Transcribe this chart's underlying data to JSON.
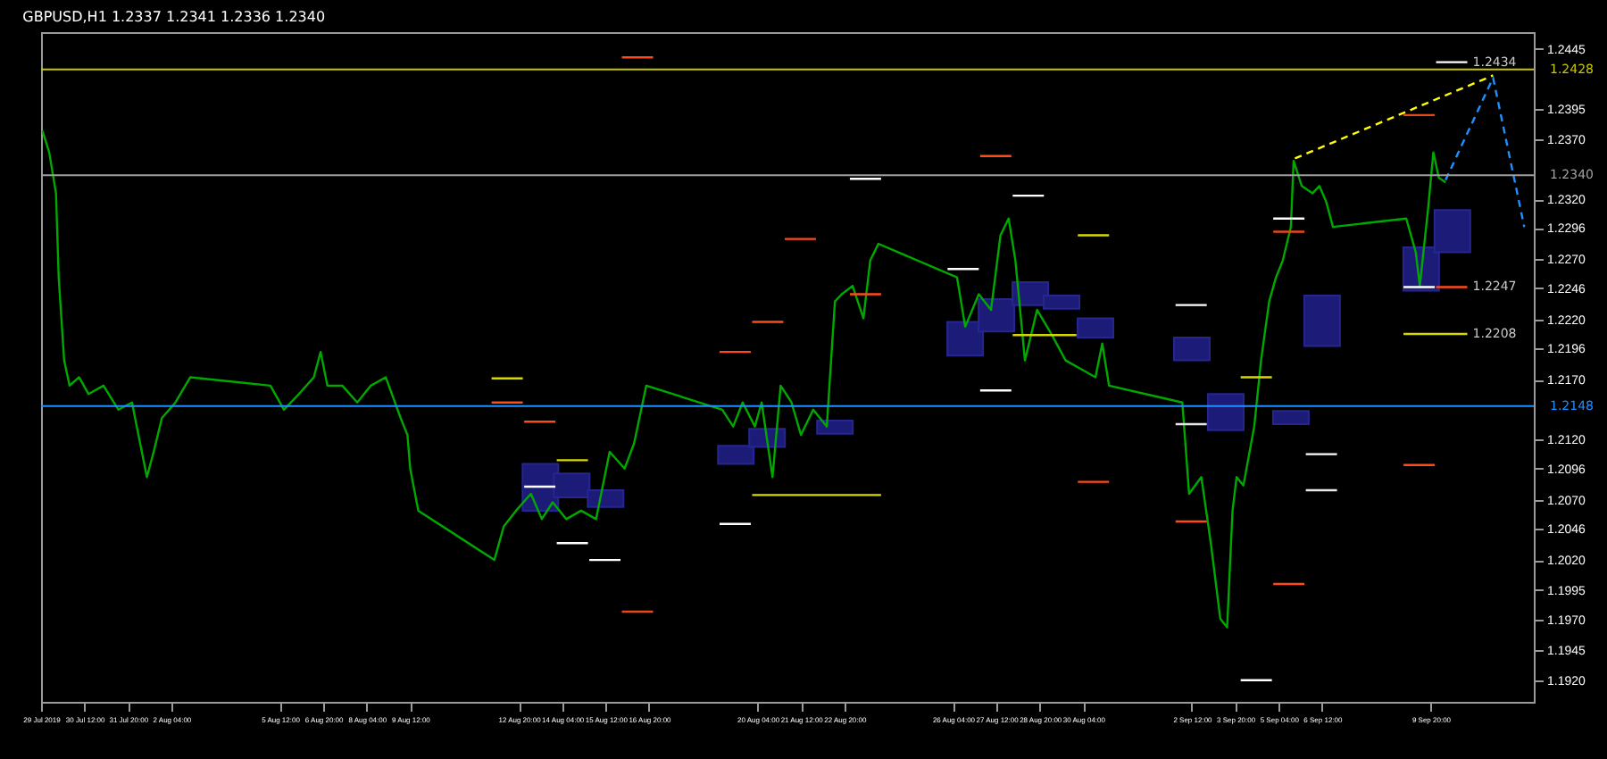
{
  "chart_data": {
    "type": "line",
    "title": "GBPUSD,H1  1.2337 1.2341 1.2336 1.2340",
    "xlim": [
      "2019-07-29T04:00",
      "2019-09-13T00:00"
    ],
    "ylim": [
      1.1902,
      1.2459
    ],
    "xticks": [
      {
        "value": "2019-07-29T04:00",
        "label": "29 Jul 2019"
      },
      {
        "value": "2019-07-30T12:00",
        "label": "30 Jul 12:00"
      },
      {
        "value": "2019-07-31T20:00",
        "label": "31 Jul 20:00"
      },
      {
        "value": "2019-08-02T04:00",
        "label": "2 Aug 04:00"
      },
      {
        "value": "2019-08-05T12:00",
        "label": "5 Aug 12:00"
      },
      {
        "value": "2019-08-06T20:00",
        "label": "6 Aug 20:00"
      },
      {
        "value": "2019-08-08T04:00",
        "label": "8 Aug 04:00"
      },
      {
        "value": "2019-08-09T12:00",
        "label": "9 Aug 12:00"
      },
      {
        "value": "2019-08-12T20:00",
        "label": "12 Aug 20:00"
      },
      {
        "value": "2019-08-14T04:00",
        "label": "14 Aug 04:00"
      },
      {
        "value": "2019-08-15T12:00",
        "label": "15 Aug 12:00"
      },
      {
        "value": "2019-08-16T20:00",
        "label": "16 Aug 20:00"
      },
      {
        "value": "2019-08-20T04:00",
        "label": "20 Aug 04:00"
      },
      {
        "value": "2019-08-21T12:00",
        "label": "21 Aug 12:00"
      },
      {
        "value": "2019-08-22T20:00",
        "label": "22 Aug 20:00"
      },
      {
        "value": "2019-08-26T04:00",
        "label": "26 Aug 04:00"
      },
      {
        "value": "2019-08-27T12:00",
        "label": "27 Aug 12:00"
      },
      {
        "value": "2019-08-28T20:00",
        "label": "28 Aug 20:00"
      },
      {
        "value": "2019-08-30T04:00",
        "label": "30 Aug 04:00"
      },
      {
        "value": "2019-09-02T12:00",
        "label": "2 Sep 12:00"
      },
      {
        "value": "2019-09-03T20:00",
        "label": "3 Sep 20:00"
      },
      {
        "value": "2019-09-05T04:00",
        "label": "5 Sep 04:00"
      },
      {
        "value": "2019-09-06T12:00",
        "label": "6 Sep 12:00"
      },
      {
        "value": "2019-09-09T20:00",
        "label": "9 Sep 20:00"
      }
    ],
    "yticks": [
      1.2445,
      1.2395,
      {
        "value": 1.237,
        "label": "1.2370"
      },
      {
        "value": 1.232,
        "label": "1.2320"
      },
      1.2296,
      {
        "value": 1.227,
        "label": "1.2270"
      },
      1.2246,
      {
        "value": 1.222,
        "label": "1.2220"
      },
      1.2196,
      {
        "value": 1.217,
        "label": "1.2170"
      },
      {
        "value": 1.212,
        "label": "1.2120"
      },
      1.2096,
      {
        "value": 1.207,
        "label": "1.2070"
      },
      1.2046,
      {
        "value": 1.202,
        "label": "1.2020"
      },
      1.1995,
      {
        "value": 1.197,
        "label": "1.1970"
      },
      1.1945,
      {
        "value": 1.192,
        "label": "1.1920"
      }
    ],
    "series": [
      {
        "type": "bar",
        "color": "#1c1c78",
        "x": [
          "2019-08-13T12:00",
          "2019-08-14T11:00",
          "2019-08-15T12:00",
          "2019-08-19T12:00",
          "2019-08-20T11:00",
          "2019-08-22T13:00",
          "2019-08-26T13:00",
          "2019-08-27T12:00",
          "2019-08-28T13:00",
          "2019-08-29T12:00",
          "2019-08-30T13:00",
          "2019-09-02T12:00",
          "2019-09-03T13:00",
          "2019-09-05T13:00",
          "2019-09-06T12:00",
          "2019-09-09T13:00",
          "2019-09-10T12:00"
        ],
        "base": [
          1.2061,
          1.2072,
          1.2064,
          1.21,
          1.2114,
          1.2125,
          1.219,
          1.221,
          1.2232,
          1.2229,
          1.2205,
          1.2186,
          1.2128,
          1.2133,
          1.2198,
          1.2244,
          1.2276
        ],
        "values": [
          0.0039,
          0.002,
          0.0014,
          0.0015,
          0.0015,
          0.0011,
          0.0028,
          0.0027,
          0.0019,
          0.0011,
          0.0016,
          0.0019,
          0.003,
          0.0011,
          0.0042,
          0.0036,
          0.0035
        ]
      },
      {
        "color": "#00a800",
        "x": [
          "2019-07-29T05:00",
          "2019-07-29T10:00",
          "2019-07-29T15:00",
          "2019-07-29T17:00",
          "2019-07-29T21:00",
          "2019-07-30T01:00",
          "2019-07-30T08:00",
          "2019-07-30T15:00",
          "2019-07-31T02:00",
          "2019-07-31T13:00",
          "2019-07-31T23:00",
          "2019-08-01T05:00",
          "2019-08-01T10:00",
          "2019-08-01T15:00",
          "2019-08-01T21:00",
          "2019-08-02T07:00",
          "2019-08-02T18:00",
          "2019-08-05T05:00",
          "2019-08-05T15:00",
          "2019-08-06T02:00",
          "2019-08-06T13:00",
          "2019-08-06T18:00",
          "2019-08-06T23:00",
          "2019-08-07T10:00",
          "2019-08-07T21:00",
          "2019-08-08T07:00",
          "2019-08-08T18:00",
          "2019-08-09T05:00",
          "2019-08-09T10:00",
          "2019-08-09T12:00",
          "2019-08-09T18:00",
          "2019-08-12T02:00",
          "2019-08-12T09:00",
          "2019-08-12T18:00",
          "2019-08-13T05:00",
          "2019-08-13T13:00",
          "2019-08-13T21:00",
          "2019-08-14T07:00",
          "2019-08-14T18:00",
          "2019-08-15T05:00",
          "2019-08-15T15:00",
          "2019-08-16T02:00",
          "2019-08-16T09:00",
          "2019-08-16T18:00",
          "2019-08-19T02:00",
          "2019-08-19T10:00",
          "2019-08-19T17:00",
          "2019-08-20T02:00",
          "2019-08-20T07:00",
          "2019-08-20T15:00",
          "2019-08-20T21:00",
          "2019-08-21T05:00",
          "2019-08-21T12:00",
          "2019-08-21T21:00",
          "2019-08-22T07:00",
          "2019-08-22T13:00",
          "2019-08-22T18:00",
          "2019-08-23T02:00",
          "2019-08-23T10:00",
          "2019-08-23T15:00",
          "2019-08-23T21:00",
          "2019-08-26T07:00",
          "2019-08-26T13:00",
          "2019-08-26T23:00",
          "2019-08-27T08:00",
          "2019-08-27T15:00",
          "2019-08-27T21:00",
          "2019-08-28T02:00",
          "2019-08-28T09:00",
          "2019-08-28T18:00",
          "2019-08-29T05:00",
          "2019-08-29T15:00",
          "2019-08-30T02:00",
          "2019-08-30T13:00",
          "2019-08-30T18:00",
          "2019-08-30T23:00",
          "2019-09-02T05:00",
          "2019-09-02T10:00",
          "2019-09-02T19:00",
          "2019-09-03T02:00",
          "2019-09-03T09:00",
          "2019-09-03T14:00",
          "2019-09-03T18:00",
          "2019-09-03T21:00",
          "2019-09-04T02:00",
          "2019-09-04T10:00",
          "2019-09-04T15:00",
          "2019-09-04T21:00",
          "2019-09-05T02:00",
          "2019-09-05T07:00",
          "2019-09-05T13:00",
          "2019-09-05T15:00",
          "2019-09-05T21:00",
          "2019-09-06T05:00",
          "2019-09-06T10:00",
          "2019-09-06T15:00",
          "2019-09-06T20:00",
          "2019-09-09T02:00",
          "2019-09-09T09:00",
          "2019-09-09T12:00",
          "2019-09-09T18:00",
          "2019-09-09T22:00",
          "2019-09-10T02:00",
          "2019-09-10T07:00"
        ],
        "values": [
          1.2377,
          1.2359,
          1.2325,
          1.2255,
          1.2186,
          1.2165,
          1.2172,
          1.2158,
          1.2165,
          1.2145,
          1.2151,
          1.2117,
          1.2089,
          1.211,
          1.2138,
          1.2151,
          1.2172,
          1.2165,
          1.2145,
          1.2158,
          1.2172,
          1.2193,
          1.2165,
          1.2165,
          1.2151,
          1.2165,
          1.2172,
          1.2138,
          1.2124,
          1.2096,
          1.2061,
          1.202,
          1.2048,
          1.2061,
          1.2075,
          1.2054,
          1.2068,
          1.2054,
          1.2061,
          1.2054,
          1.211,
          1.2096,
          1.2117,
          1.2165,
          1.2145,
          1.2131,
          1.2151,
          1.2131,
          1.2151,
          1.2089,
          1.2165,
          1.2151,
          1.2124,
          1.2145,
          1.2131,
          1.2235,
          1.2241,
          1.2248,
          1.2221,
          1.2269,
          1.2283,
          1.2255,
          1.2214,
          1.2241,
          1.2228,
          1.229,
          1.2304,
          1.2269,
          1.2186,
          1.2228,
          1.2207,
          1.2186,
          1.2179,
          1.2172,
          1.22,
          1.2165,
          1.2151,
          1.2075,
          1.2089,
          1.2034,
          1.1971,
          1.1964,
          1.2061,
          1.2089,
          1.2082,
          1.2131,
          1.2186,
          1.2235,
          1.2255,
          1.2269,
          1.2297,
          1.2352,
          1.2331,
          1.2325,
          1.2331,
          1.2318,
          1.2297,
          1.2304,
          1.2276,
          1.2248,
          1.2311,
          1.2359,
          1.2338,
          1.2334
        ]
      },
      {
        "color": "#ff4a1a",
        "x": [
          "2019-08-16T00:00",
          "2019-08-16T23:00",
          null,
          "2019-08-27T00:00",
          "2019-08-27T23:00",
          null,
          "2019-08-21T00:00",
          "2019-08-21T23:00",
          null,
          "2019-08-20T00:00",
          "2019-08-20T23:00",
          null,
          "2019-08-19T00:00",
          "2019-08-19T23:00",
          null,
          "2019-08-12T00:00",
          "2019-08-12T23:00",
          null,
          "2019-08-13T00:00",
          "2019-08-13T23:00",
          null,
          "2019-08-23T00:00",
          "2019-08-23T23:00",
          null,
          "2019-08-30T00:00",
          "2019-08-30T23:00",
          null,
          "2019-09-02T00:00",
          "2019-09-02T23:00",
          null,
          "2019-09-05T00:00",
          "2019-09-05T23:00",
          null,
          "2019-09-09T00:00",
          "2019-09-09T23:00",
          null,
          "2019-09-10T00:00",
          "2019-09-10T23:00"
        ],
        "values": [
          1.2438,
          1.2438,
          null,
          1.2356,
          1.2356,
          null,
          1.2287,
          1.2287,
          null,
          1.2218,
          1.2218,
          null,
          1.2193,
          1.2193,
          null,
          1.2151,
          1.2151,
          null,
          1.2135,
          1.2135,
          null,
          1.2241,
          1.2241,
          null,
          1.2085,
          1.2085,
          null,
          1.2052,
          1.2052,
          null,
          1.2,
          1.2,
          null,
          1.2099,
          1.2099,
          null,
          1.2247,
          1.2247
        ]
      },
      {
        "color": "#e84818",
        "x": [
          "2019-09-09T00:00",
          "2019-09-09T23:00",
          null,
          "2019-08-16T00:00",
          "2019-08-16T23:00",
          null,
          "2019-09-05T00:00",
          "2019-09-05T23:00"
        ],
        "values": [
          1.239,
          1.239,
          null,
          1.1977,
          1.1977,
          null,
          1.2293,
          1.2293
        ]
      },
      {
        "color": "#ffffff",
        "x": [
          "2019-08-23T00:00",
          "2019-08-23T23:00",
          null,
          "2019-08-28T00:00",
          "2019-08-28T23:00",
          null,
          "2019-08-26T00:00",
          "2019-08-26T23:00",
          null,
          "2019-09-02T00:00",
          "2019-09-02T23:00",
          null,
          "2019-08-13T00:00",
          "2019-08-13T23:00",
          null,
          "2019-08-14T00:00",
          "2019-08-14T23:00",
          null,
          "2019-08-15T00:00",
          "2019-08-15T23:00",
          null,
          "2019-08-19T00:00",
          "2019-08-19T23:00",
          null,
          "2019-09-06T00:00",
          "2019-09-06T23:00",
          null,
          "2019-09-04T00:00",
          "2019-09-04T23:00",
          null,
          "2019-09-10T00:00",
          "2019-09-10T23:00",
          null,
          "2019-09-09T00:00",
          "2019-09-09T23:00",
          null,
          "2019-09-05T00:00",
          "2019-09-05T23:00",
          null,
          "2019-08-27T00:00",
          "2019-08-27T23:00"
        ],
        "values": [
          1.2337,
          1.2337,
          null,
          1.2323,
          1.2323,
          null,
          1.2262,
          1.2262,
          null,
          1.2232,
          1.2232,
          null,
          1.2081,
          1.2081,
          null,
          1.2034,
          1.2034,
          null,
          1.202,
          1.202,
          null,
          1.205,
          1.205,
          null,
          1.2108,
          1.2108,
          null,
          1.192,
          1.192,
          null,
          1.2434,
          1.2434,
          null,
          1.2247,
          1.2247,
          null,
          1.2304,
          1.2304,
          null,
          1.2161,
          1.2161
        ]
      },
      {
        "color": "#e8e8e8",
        "x": [
          "2019-09-02T00:00",
          "2019-09-02T23:00",
          null,
          "2019-09-06T00:00",
          "2019-09-06T23:00"
        ],
        "values": [
          1.2133,
          1.2133,
          null,
          1.2078,
          1.2078
        ]
      },
      {
        "color": "#d8d800",
        "x": [
          "2019-08-12T00:00",
          "2019-08-12T23:00",
          null,
          "2019-08-14T00:00",
          "2019-08-14T23:00",
          null,
          "2019-08-20T00:00",
          "2019-08-23T23:00",
          null,
          "2019-08-28T00:00",
          "2019-08-29T23:00",
          null,
          "2019-08-30T00:00",
          "2019-08-30T23:00",
          null,
          "2019-09-04T00:00",
          "2019-09-04T23:00",
          null,
          "2019-09-09T00:00",
          "2019-09-10T23:00"
        ],
        "values": [
          1.2171,
          1.2171,
          null,
          1.2103,
          1.2103,
          null,
          1.2074,
          1.2074,
          null,
          1.2207,
          1.2207,
          null,
          1.229,
          1.229,
          null,
          1.2172,
          1.2172,
          null,
          1.2208,
          1.2208
        ]
      },
      {
        "color": "#ffff00",
        "line_style": "dashed",
        "x": [
          "2019-09-05T16:00",
          "2019-09-11T18:00"
        ],
        "values": [
          1.2354,
          1.2423
        ]
      },
      {
        "color": "#1e90ff",
        "line_style": "dashed",
        "x": [
          "2019-09-10T07:00",
          "2019-09-11T18:00",
          "2019-09-12T17:00"
        ],
        "values": [
          1.2336,
          1.2421,
          1.2297
        ]
      }
    ],
    "ref_lines": [
      {
        "axis": "y",
        "value": 1.2428,
        "label": "1.2428",
        "color": "#c8c800"
      },
      {
        "axis": "y",
        "value": 1.234,
        "label": "1.2340",
        "color": "#a0a0a0"
      },
      {
        "axis": "y",
        "value": 1.2148,
        "label": "1.2148",
        "color": "#1e90ff"
      }
    ],
    "annotations": [
      {
        "text": "1.2434",
        "x": "2019-09-10T23:00",
        "y": 1.2434
      },
      {
        "text": "1.2247",
        "x": "2019-09-10T23:00",
        "y": 1.2247
      },
      {
        "text": "1.2208",
        "x": "2019-09-10T23:00",
        "y": 1.2208
      }
    ]
  }
}
